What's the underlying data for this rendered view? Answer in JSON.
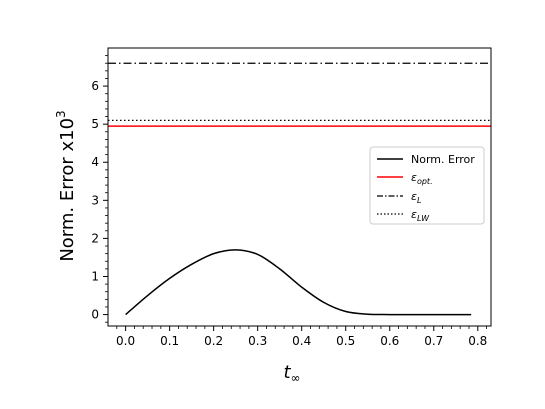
{
  "chart_data": {
    "type": "line",
    "ylabel": "Norm.  Error x10",
    "ylabel_exponent": "3",
    "xlabel": "t",
    "xlabel_subscript": "∞",
    "xlim": [
      -0.04,
      0.83
    ],
    "ylim": [
      -0.3,
      7.0
    ],
    "xticks": [
      "0.0",
      "0.1",
      "0.2",
      "0.3",
      "0.4",
      "0.5",
      "0.6",
      "0.7",
      "0.8"
    ],
    "xtick_values": [
      0,
      0.1,
      0.2,
      0.3,
      0.4,
      0.5,
      0.6,
      0.7,
      0.8
    ],
    "yticks": [
      "0",
      "1",
      "2",
      "3",
      "4",
      "5",
      "6"
    ],
    "ytick_values": [
      0,
      1,
      2,
      3,
      4,
      5,
      6
    ],
    "legend_position": "right",
    "series": [
      {
        "name": "Norm. Error",
        "style": "solid",
        "color": "#000000",
        "x": [
          0.0,
          0.05,
          0.1,
          0.15,
          0.2,
          0.25,
          0.3,
          0.35,
          0.4,
          0.45,
          0.5,
          0.55,
          0.6,
          0.65,
          0.7,
          0.75,
          0.785
        ],
        "y": [
          0.0,
          0.5,
          0.95,
          1.32,
          1.6,
          1.7,
          1.58,
          1.2,
          0.72,
          0.32,
          0.08,
          0.01,
          0.0,
          0.0,
          0.0,
          0.0,
          0.0
        ]
      },
      {
        "name_main": "ε",
        "name_sub": "opt.",
        "style": "solid",
        "color": "#ff0000",
        "y_constant": 4.95
      },
      {
        "name_main": "ε",
        "name_sub": "L",
        "style": "dashdot",
        "color": "#000000",
        "y_constant": 6.6
      },
      {
        "name_main": "ε",
        "name_sub": "LW",
        "style": "dotted",
        "color": "#000000",
        "y_constant": 5.1
      }
    ]
  }
}
